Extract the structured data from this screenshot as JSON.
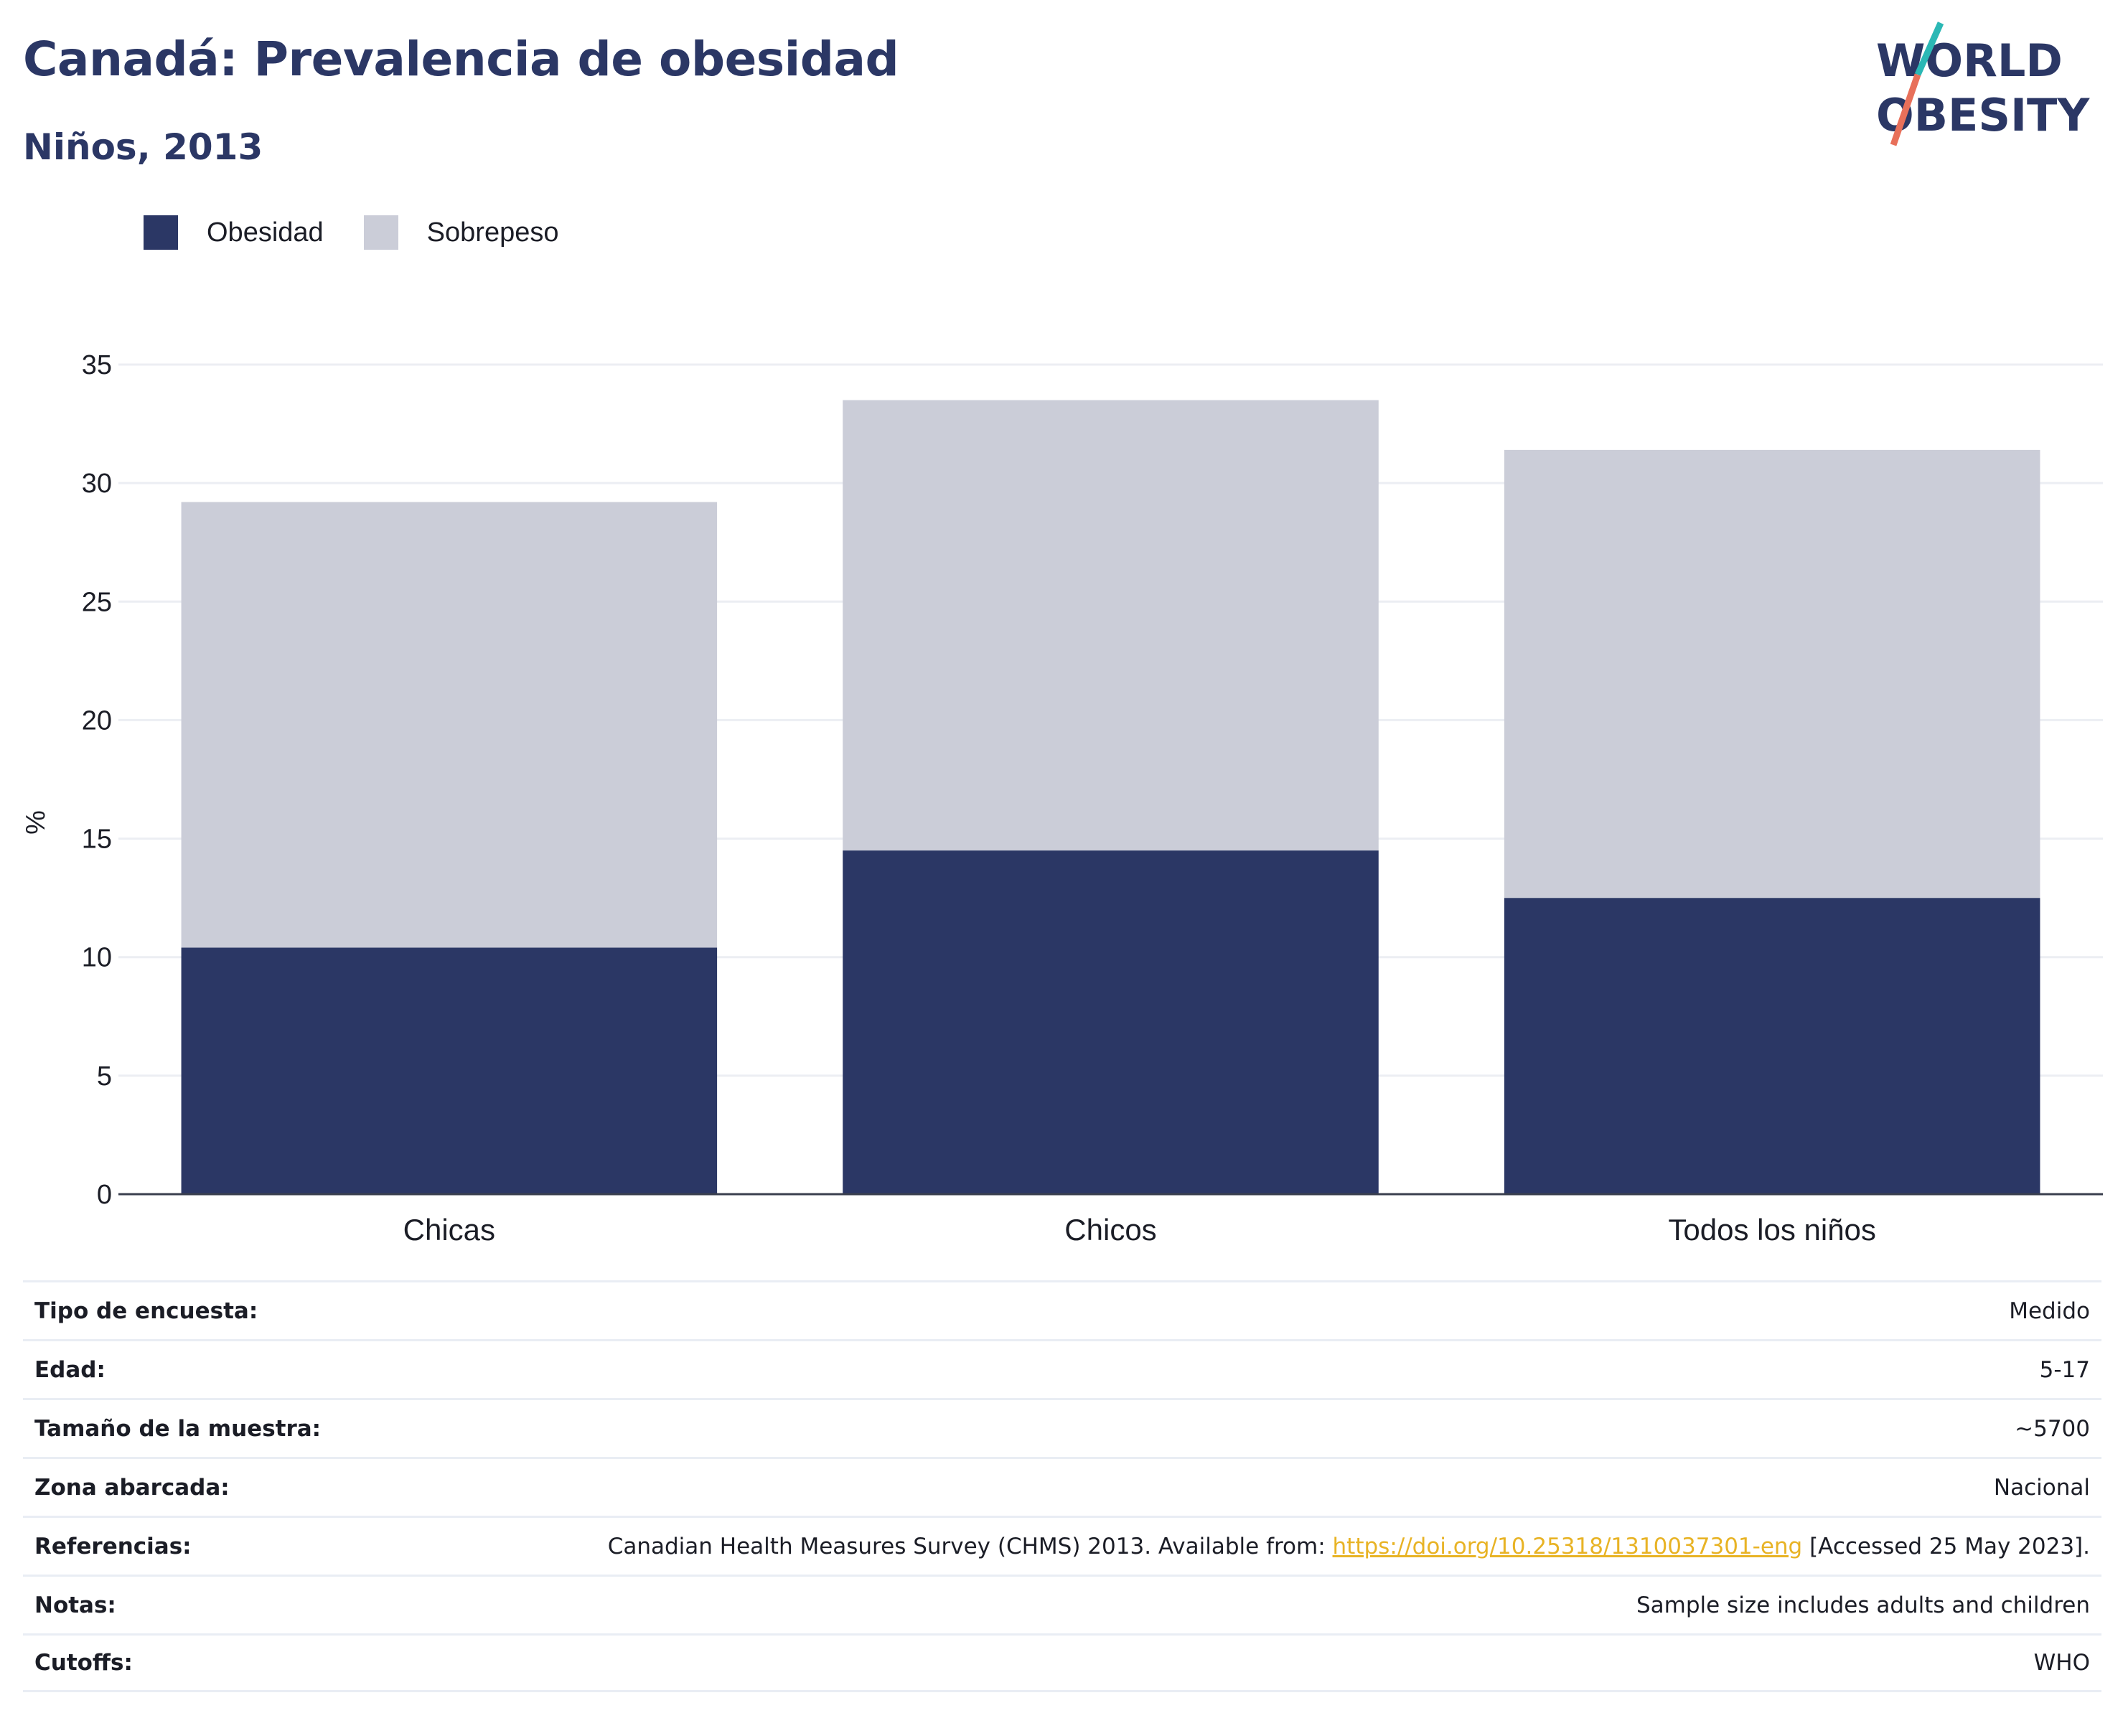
{
  "title": "Canadá: Prevalencia de obesidad",
  "subtitle": "Niños, 2013",
  "logo": {
    "line1": "WORLD",
    "line2": "OBESITY"
  },
  "colors": {
    "obesity": "#2b3765",
    "overweight": "#cbcdd8",
    "title": "#2b3765",
    "link": "#e8b325",
    "logo_teal": "#2bb8b5",
    "logo_coral": "#e8705a"
  },
  "chart_data": {
    "type": "bar",
    "stacked": true,
    "categories": [
      "Chicas",
      "Chicos",
      "Todos los niños"
    ],
    "series": [
      {
        "name": "Obesidad",
        "values": [
          10.4,
          14.5,
          12.5
        ]
      },
      {
        "name": "Sobrepeso",
        "values": [
          18.8,
          19.0,
          18.9
        ]
      }
    ],
    "ylabel": "%",
    "xlabel": "",
    "ylim": [
      0,
      35
    ],
    "yticks": [
      0,
      5,
      10,
      15,
      20,
      25,
      30,
      35
    ],
    "grid": true,
    "legend_position": "top-left"
  },
  "meta": [
    {
      "label": "Tipo de encuesta:",
      "value": "Medido"
    },
    {
      "label": "Edad:",
      "value": "5-17"
    },
    {
      "label": "Tamaño de la muestra:",
      "value": "~5700"
    },
    {
      "label": "Zona abarcada:",
      "value": "Nacional"
    },
    {
      "label": "Referencias:",
      "value": "Canadian Health Measures Survey (CHMS) 2013. Available from: ",
      "link": "https://doi.org/10.25318/1310037301-eng",
      "suffix": " [Accessed 25 May 2023]."
    },
    {
      "label": "Notas:",
      "value": "Sample size includes adults and children"
    },
    {
      "label": "Cutoffs:",
      "value": "WHO"
    }
  ]
}
